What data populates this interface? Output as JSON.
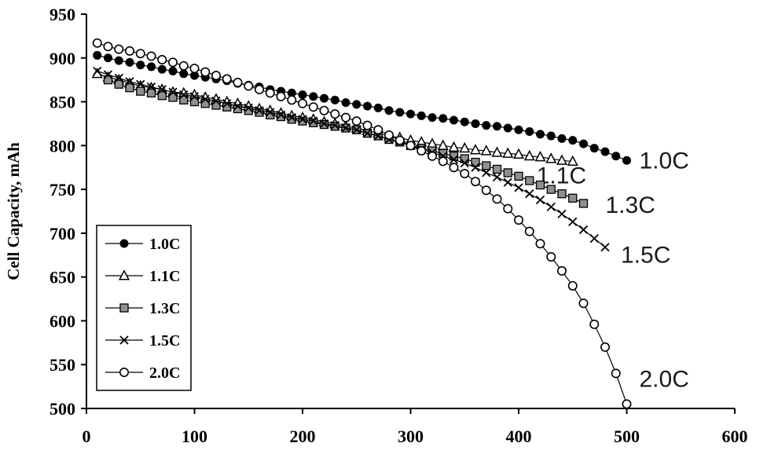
{
  "figure": {
    "background": "#ffffff",
    "axis_color": "#000000"
  },
  "chart_data": {
    "type": "line",
    "title": "",
    "xlabel": "",
    "ylabel": "Cell Capacity, mAh",
    "xlim": [
      0,
      600
    ],
    "ylim": [
      500,
      950
    ],
    "xticks": [
      0,
      100,
      200,
      300,
      400,
      500,
      600
    ],
    "yticks": [
      500,
      550,
      600,
      650,
      700,
      750,
      800,
      850,
      900,
      950
    ],
    "grid": false,
    "legend": {
      "position": "lower-left",
      "entries": [
        "1.0C",
        "1.1C",
        "1.3C",
        "1.5C",
        "2.0C"
      ]
    },
    "series": [
      {
        "name": "1.0C",
        "marker": "filled-circle",
        "line_color": "#000000",
        "end_label": "1.0C",
        "x": [
          10,
          20,
          30,
          40,
          50,
          60,
          70,
          80,
          90,
          100,
          110,
          120,
          130,
          140,
          150,
          160,
          170,
          180,
          190,
          200,
          210,
          220,
          230,
          240,
          250,
          260,
          270,
          280,
          290,
          300,
          310,
          320,
          330,
          340,
          350,
          360,
          370,
          380,
          390,
          400,
          410,
          420,
          430,
          440,
          450,
          460,
          470,
          480,
          490,
          500
        ],
        "y": [
          903,
          900,
          897,
          895,
          892,
          890,
          887,
          885,
          882,
          880,
          878,
          876,
          874,
          871,
          869,
          867,
          864,
          862,
          860,
          858,
          856,
          854,
          852,
          849,
          847,
          845,
          843,
          840,
          838,
          836,
          834,
          832,
          831,
          829,
          827,
          825,
          823,
          822,
          820,
          818,
          816,
          813,
          811,
          808,
          806,
          802,
          797,
          793,
          788,
          783
        ]
      },
      {
        "name": "1.1C",
        "marker": "open-triangle",
        "line_color": "#000000",
        "end_label": "1.1C",
        "x": [
          10,
          20,
          30,
          40,
          50,
          60,
          70,
          80,
          90,
          100,
          110,
          120,
          130,
          140,
          150,
          160,
          170,
          180,
          190,
          200,
          210,
          220,
          230,
          240,
          250,
          260,
          270,
          280,
          290,
          300,
          310,
          320,
          330,
          340,
          350,
          360,
          370,
          380,
          390,
          400,
          410,
          420,
          430,
          440,
          450
        ],
        "y": [
          882,
          878,
          875,
          871,
          868,
          866,
          864,
          861,
          860,
          858,
          855,
          853,
          850,
          848,
          845,
          842,
          840,
          837,
          834,
          832,
          830,
          827,
          825,
          822,
          820,
          817,
          814,
          811,
          809,
          806,
          804,
          802,
          800,
          798,
          797,
          795,
          794,
          792,
          791,
          790,
          788,
          787,
          785,
          783,
          782
        ]
      },
      {
        "name": "1.3C",
        "marker": "filled-square",
        "line_color": "#000000",
        "end_label": "1.3C",
        "x": [
          20,
          30,
          40,
          50,
          60,
          70,
          80,
          90,
          100,
          110,
          120,
          130,
          140,
          150,
          160,
          170,
          180,
          190,
          200,
          210,
          220,
          230,
          240,
          250,
          260,
          270,
          280,
          290,
          300,
          310,
          320,
          330,
          340,
          350,
          360,
          370,
          380,
          390,
          400,
          410,
          420,
          430,
          440,
          450,
          460
        ],
        "y": [
          875,
          870,
          866,
          862,
          860,
          857,
          855,
          852,
          850,
          848,
          846,
          844,
          842,
          840,
          838,
          835,
          833,
          830,
          828,
          826,
          824,
          822,
          820,
          818,
          814,
          811,
          807,
          804,
          800,
          797,
          794,
          791,
          788,
          785,
          781,
          777,
          773,
          769,
          765,
          760,
          755,
          750,
          745,
          740,
          734
        ]
      },
      {
        "name": "1.5C",
        "marker": "x-cross",
        "line_color": "#000000",
        "end_label": "1.5C",
        "x": [
          10,
          20,
          30,
          40,
          50,
          60,
          70,
          80,
          90,
          100,
          110,
          120,
          130,
          140,
          150,
          160,
          170,
          180,
          190,
          200,
          210,
          220,
          230,
          240,
          250,
          260,
          270,
          280,
          290,
          300,
          310,
          320,
          330,
          340,
          350,
          360,
          370,
          380,
          390,
          400,
          410,
          420,
          430,
          440,
          450,
          460,
          470,
          480
        ],
        "y": [
          885,
          881,
          877,
          873,
          870,
          867,
          864,
          861,
          858,
          856,
          853,
          851,
          848,
          845,
          843,
          840,
          838,
          835,
          832,
          830,
          828,
          825,
          823,
          820,
          818,
          814,
          811,
          807,
          804,
          800,
          796,
          792,
          788,
          784,
          780,
          775,
          769,
          764,
          758,
          752,
          745,
          738,
          730,
          722,
          713,
          704,
          694,
          684
        ]
      },
      {
        "name": "2.0C",
        "marker": "open-circle",
        "line_color": "#000000",
        "end_label": "2.0C",
        "x": [
          10,
          20,
          30,
          40,
          50,
          60,
          70,
          80,
          90,
          100,
          110,
          120,
          130,
          140,
          150,
          160,
          170,
          180,
          190,
          200,
          210,
          220,
          230,
          240,
          250,
          260,
          270,
          280,
          290,
          300,
          310,
          320,
          330,
          340,
          350,
          360,
          370,
          380,
          390,
          400,
          410,
          420,
          430,
          440,
          450,
          460,
          470,
          480,
          490,
          500
        ],
        "y": [
          917,
          913,
          910,
          908,
          905,
          902,
          898,
          895,
          891,
          888,
          884,
          880,
          876,
          872,
          868,
          864,
          860,
          856,
          852,
          848,
          844,
          840,
          836,
          832,
          828,
          823,
          818,
          812,
          806,
          800,
          794,
          788,
          782,
          775,
          768,
          759,
          749,
          739,
          728,
          715,
          702,
          688,
          673,
          657,
          640,
          620,
          596,
          570,
          540,
          505
        ]
      }
    ]
  }
}
